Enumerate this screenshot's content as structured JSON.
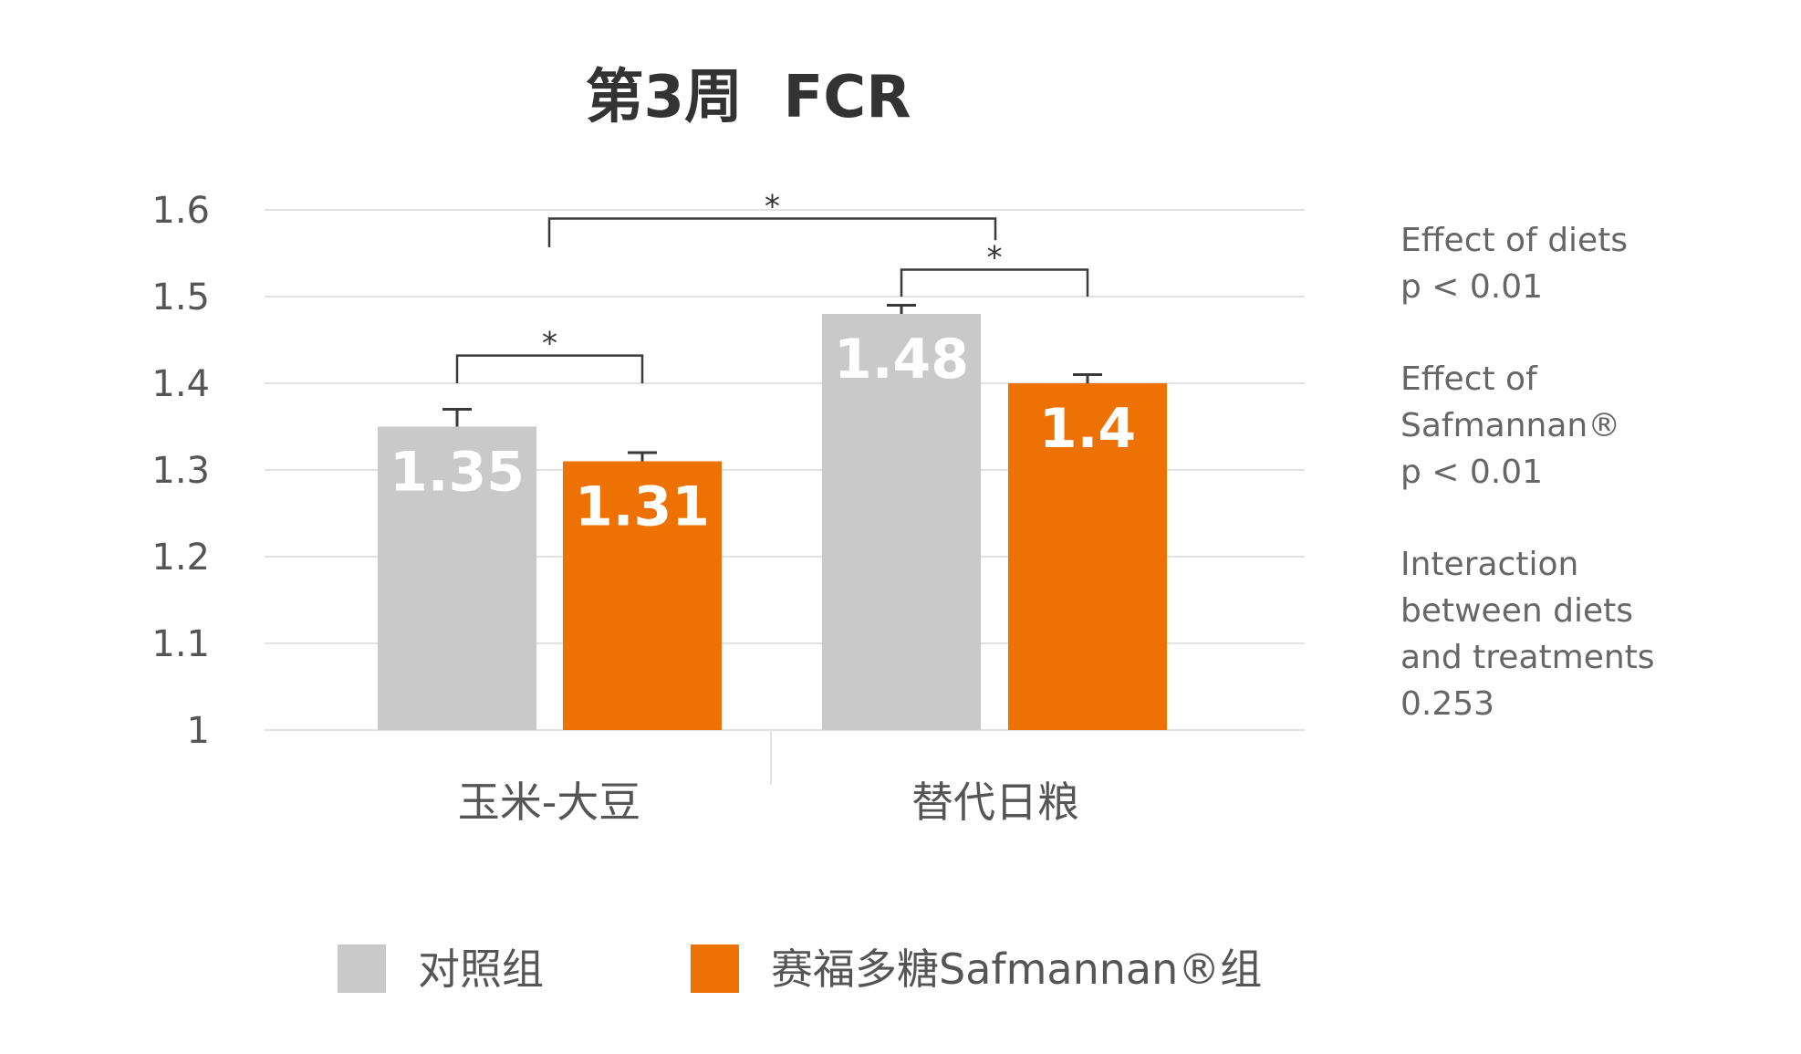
{
  "chart_data": {
    "type": "bar",
    "title": "第3周  FCR",
    "categories": [
      "玉米-大豆",
      "替代日粮"
    ],
    "series": [
      {
        "name": "对照组",
        "values": [
          1.35,
          1.48
        ],
        "errors": [
          0.02,
          0.01
        ],
        "color": "#c9c9c9"
      },
      {
        "name": "赛福多糖Safmannan®组",
        "values": [
          1.31,
          1.4
        ],
        "errors": [
          0.01,
          0.01
        ],
        "color": "#ee7203"
      }
    ],
    "value_labels": [
      [
        "1.35",
        "1.48"
      ],
      [
        "1.31",
        "1.4"
      ]
    ],
    "ylim": [
      1,
      1.6
    ],
    "yticks": [
      "1",
      "1.1",
      "1.2",
      "1.3",
      "1.4",
      "1.5",
      "1.6"
    ],
    "grid": true,
    "legend": "bottom",
    "significance": [
      {
        "between": "玉米-大豆: 对照组 vs 赛福多糖Safmannan®组",
        "label": "*"
      },
      {
        "between": "替代日粮: 对照组 vs 赛福多糖Safmannan®组",
        "label": "*"
      },
      {
        "between": "玉米-大豆 vs 替代日粮",
        "label": "*"
      }
    ]
  },
  "stats": [
    {
      "lines": [
        "Effect of diets",
        "p < 0.01"
      ]
    },
    {
      "lines": [
        "Effect of",
        "Safmannan®",
        "p < 0.01"
      ]
    },
    {
      "lines": [
        "Interaction",
        "between diets",
        "and treatments",
        "0.253"
      ]
    }
  ]
}
